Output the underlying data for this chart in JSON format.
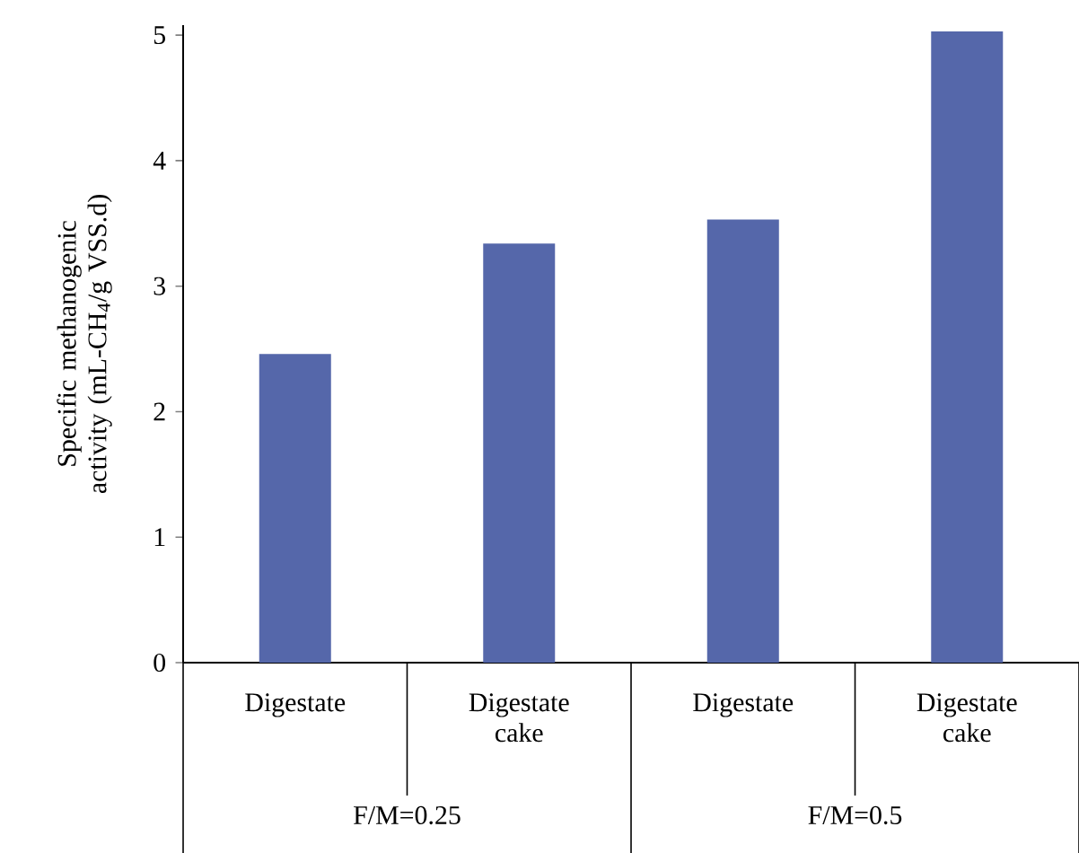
{
  "chart_data": {
    "type": "bar",
    "categories": [
      "Digestate",
      "Digestate cake",
      "Digestate",
      "Digestate cake"
    ],
    "values": [
      2.46,
      3.34,
      3.53,
      5.03
    ],
    "color": "#5567aa",
    "ylabel": "Specific methanogenic activity (mL-CH$_{4}$/g VSS.d)",
    "ylim": [
      0,
      5.08
    ],
    "yticks": [
      0,
      1,
      2,
      3,
      4,
      5
    ],
    "annotations": [
      "F/M=0.25",
      "F/M=0.5"
    ]
  }
}
